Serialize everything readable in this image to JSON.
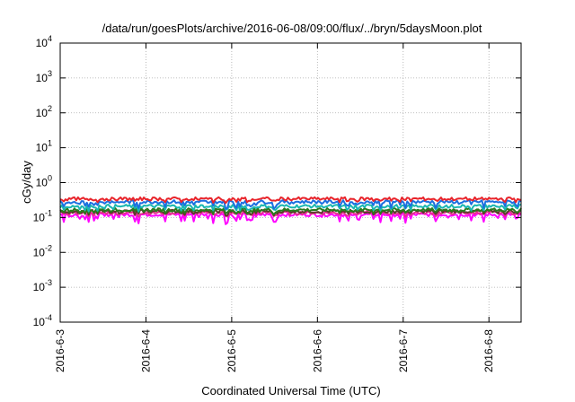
{
  "chart_data": {
    "type": "line",
    "title": "/data/run/goesPlots/archive/2016-06-08/09:00/flux/../bryn/5daysMoon.plot",
    "xlabel": "Coordinated Universal Time (UTC)",
    "ylabel": "cGy/day",
    "yscale": "log",
    "ylim": [
      0.0001,
      10000
    ],
    "xlim": [
      "2016-06-03T00:00",
      "2016-06-08T09:00"
    ],
    "grid": true,
    "x_ticks": [
      "2016-6-3",
      "2016-6-4",
      "2016-6-5",
      "2016-6-6",
      "2016-6-7",
      "2016-6-8"
    ],
    "y_ticks": [
      {
        "base": "10",
        "exp": "-4"
      },
      {
        "base": "10",
        "exp": "-3"
      },
      {
        "base": "10",
        "exp": "-2"
      },
      {
        "base": "10",
        "exp": "-1"
      },
      {
        "base": "10",
        "exp": "0"
      },
      {
        "base": "10",
        "exp": "1"
      },
      {
        "base": "10",
        "exp": "2"
      },
      {
        "base": "10",
        "exp": "3"
      },
      {
        "base": "10",
        "exp": "4"
      }
    ],
    "series": [
      {
        "color": "#e8242b",
        "base": 0.34,
        "dip": 0.75
      },
      {
        "color": "#1b6fe0",
        "base": 0.28,
        "dip": 0.5
      },
      {
        "color": "#19b7b0",
        "base": 0.21,
        "dip": 0.6
      },
      {
        "color": "#2a7a1e",
        "base": 0.165,
        "dip": 0.7
      },
      {
        "color": "#5a3c2a",
        "base": 0.15,
        "dip": 0.7
      },
      {
        "color": "#e8308f",
        "base": 0.135,
        "dip": 0.75
      },
      {
        "color": "#ff00ff",
        "base": 0.12,
        "dip": 0.35
      }
    ]
  }
}
